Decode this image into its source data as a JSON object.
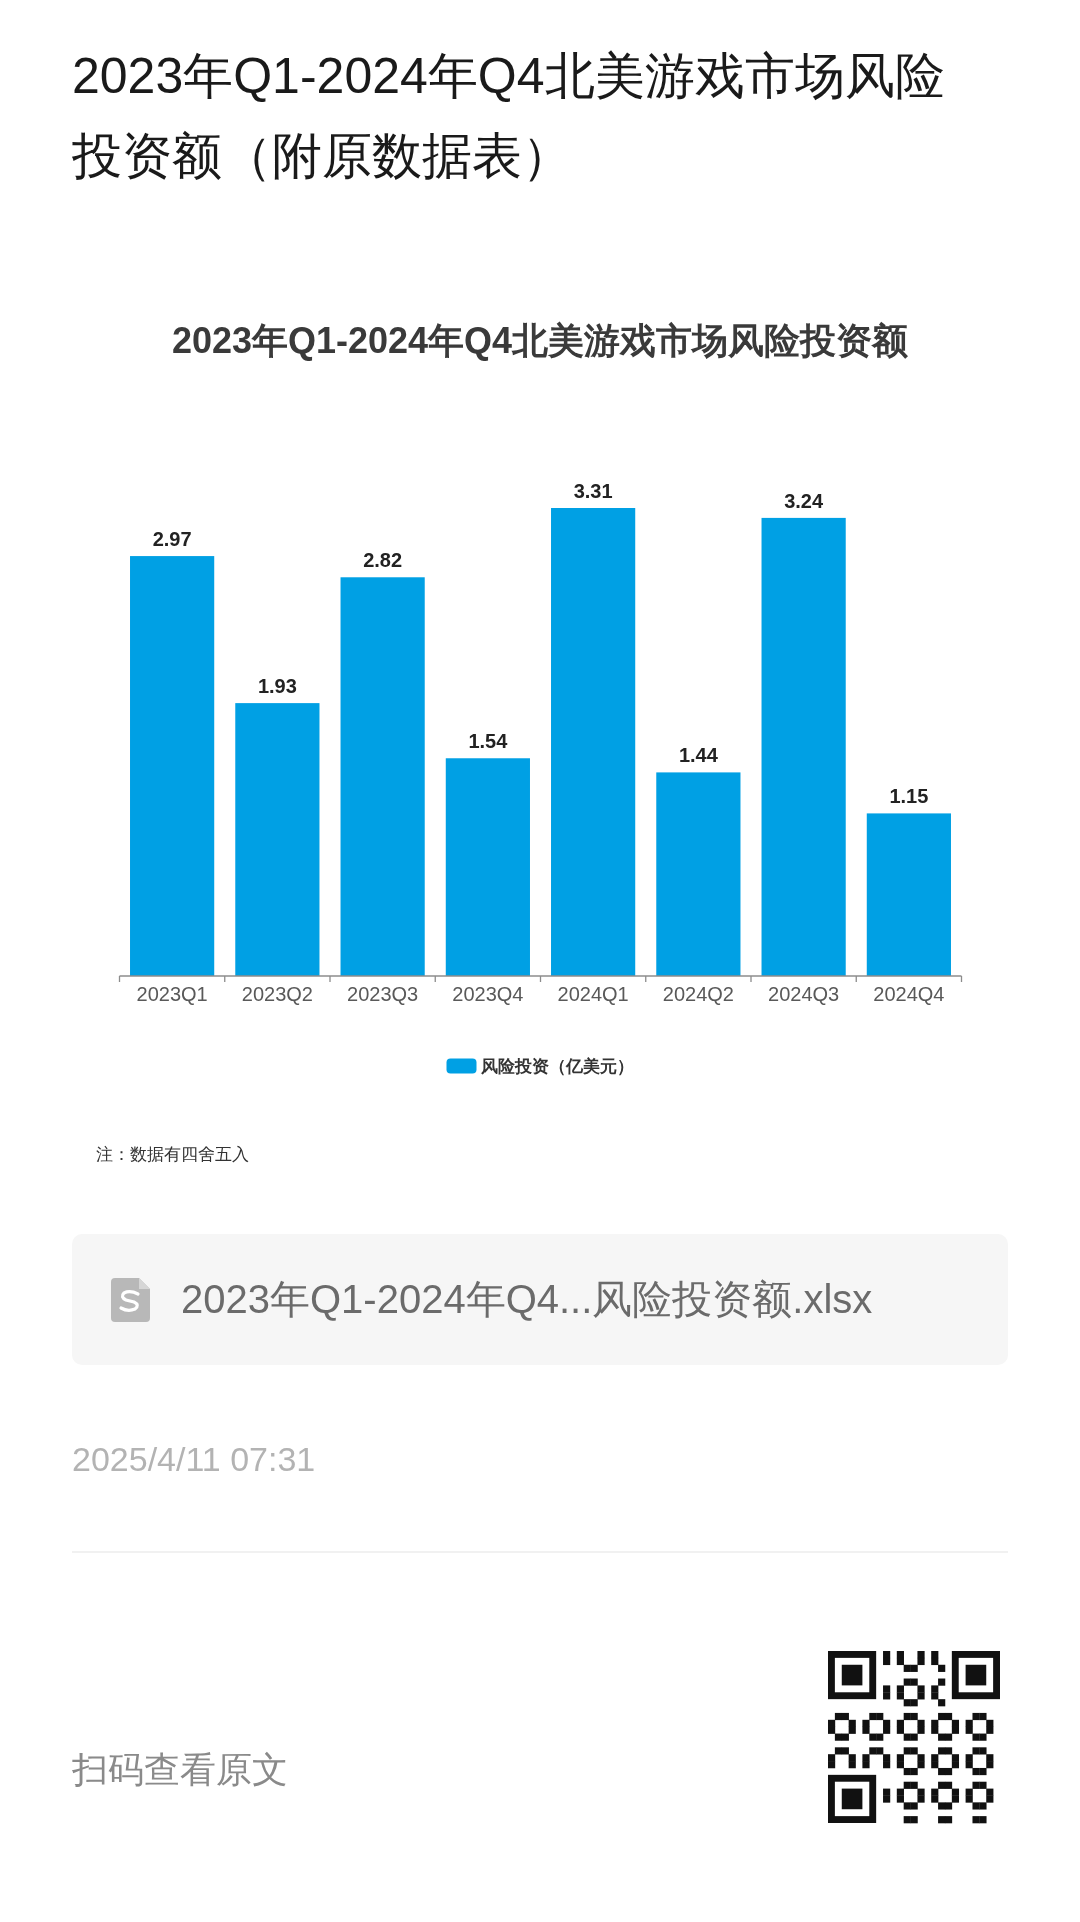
{
  "chart_data": {
    "type": "bar",
    "title": "2023年Q1-2024年Q4北美游戏市场风险投资额（附原数据表）",
    "subtitle": "2023年Q1-2024年Q4北美游戏市场风险投资额",
    "categories": [
      "2023Q1",
      "2023Q2",
      "2023Q3",
      "2023Q4",
      "2024Q1",
      "2024Q2",
      "2024Q3",
      "2024Q4"
    ],
    "series": [
      {
        "name": "风险投资（亿美元）",
        "color": "#00a0e4",
        "values": [
          2.97,
          1.93,
          2.82,
          1.54,
          3.31,
          1.44,
          3.24,
          1.15
        ]
      }
    ],
    "data_labels": true,
    "legend": "bottom",
    "annotations": [
      "注：数据有四舍五入",
      "2023年Q1-2024年Q4...风险投资额.xlsx",
      "2025/4/11 07:31",
      "扫码查看原文"
    ]
  }
}
